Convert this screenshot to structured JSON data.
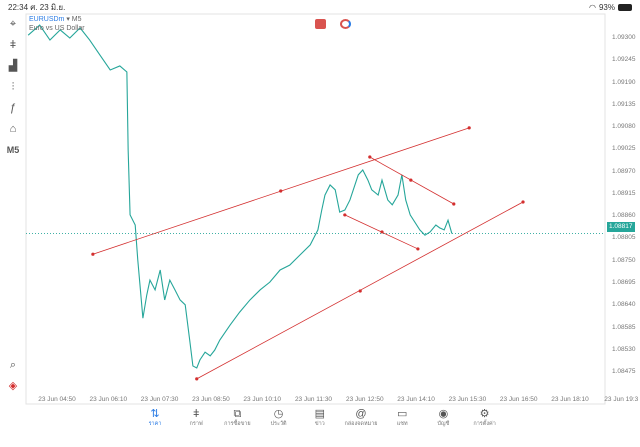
{
  "status_bar": {
    "time": "22:34",
    "date": "ศ. 23 มิ.ย.",
    "wifi_icon": "wifi-icon",
    "battery": "93%"
  },
  "symbol": {
    "name": "EURUSDm",
    "timeframe": "M5",
    "description": "Euro vs US Dollar"
  },
  "toolbar": {
    "items": [
      {
        "icon": "crosshair-icon",
        "glyph": "⌖"
      },
      {
        "icon": "candlestick-icon",
        "glyph": "ǂ"
      },
      {
        "icon": "indicators-icon",
        "glyph": "▟"
      },
      {
        "icon": "settings-sliders-icon",
        "glyph": "⫶"
      },
      {
        "icon": "function-icon",
        "glyph": "ƒ"
      },
      {
        "icon": "shapes-icon",
        "glyph": "⌂"
      },
      {
        "icon": "timeframe",
        "glyph": "M5"
      }
    ],
    "bottom": [
      {
        "icon": "search-chart-icon",
        "glyph": "⌕"
      },
      {
        "icon": "broker-logo-icon",
        "glyph": "◈"
      }
    ]
  },
  "colors": {
    "line": "#26a69a",
    "drawings": "#d32f2f",
    "current_price_bg": "#26a69a",
    "accent": "#2a7be4"
  },
  "chart_data": {
    "type": "line",
    "price_ticks": [
      "1.09300",
      "1.09245",
      "1.09190",
      "1.09135",
      "1.09080",
      "1.09025",
      "1.08970",
      "1.08915",
      "1.08860",
      "1.08805",
      "1.08750",
      "1.08695",
      "1.08640",
      "1.08585",
      "1.08530",
      "1.08475"
    ],
    "time_ticks": [
      "23 Jun 04:50",
      "23 Jun 06:10",
      "23 Jun 07:30",
      "23 Jun 08:50",
      "23 Jun 10:10",
      "23 Jun 11:30",
      "23 Jun 12:50",
      "23 Jun 14:10",
      "23 Jun 15:30",
      "23 Jun 16:50",
      "23 Jun 18:10",
      "23 Jun 19:3"
    ],
    "current_price": "1.08817",
    "series": [
      [
        "04:05",
        1.09307
      ],
      [
        "04:23",
        1.09332
      ],
      [
        "04:39",
        1.09295
      ],
      [
        "04:55",
        1.0932
      ],
      [
        "05:10",
        1.093
      ],
      [
        "05:26",
        1.09325
      ],
      [
        "05:41",
        1.09295
      ],
      [
        "05:57",
        1.09258
      ],
      [
        "06:13",
        1.09221
      ],
      [
        "06:28",
        1.09231
      ],
      [
        "06:39",
        1.09216
      ],
      [
        "06:41",
        1.09023
      ],
      [
        "06:44",
        1.08863
      ],
      [
        "06:52",
        1.08838
      ],
      [
        "06:56",
        1.08752
      ],
      [
        "07:04",
        1.08608
      ],
      [
        "07:10",
        1.08665
      ],
      [
        "07:15",
        1.08702
      ],
      [
        "07:23",
        1.08678
      ],
      [
        "07:31",
        1.08727
      ],
      [
        "07:38",
        1.08653
      ],
      [
        "07:46",
        1.08702
      ],
      [
        "07:54",
        1.08678
      ],
      [
        "08:02",
        1.08653
      ],
      [
        "08:10",
        1.08641
      ],
      [
        "08:17",
        1.08554
      ],
      [
        "08:22",
        1.0849
      ],
      [
        "08:28",
        1.08485
      ],
      [
        "08:33",
        1.08505
      ],
      [
        "08:41",
        1.08524
      ],
      [
        "08:49",
        1.08515
      ],
      [
        "08:56",
        1.08529
      ],
      [
        "09:04",
        1.08554
      ],
      [
        "09:20",
        1.08591
      ],
      [
        "09:35",
        1.08623
      ],
      [
        "09:51",
        1.08653
      ],
      [
        "10:07",
        1.08678
      ],
      [
        "10:22",
        1.08697
      ],
      [
        "10:38",
        1.08727
      ],
      [
        "10:53",
        1.08739
      ],
      [
        "11:09",
        1.08764
      ],
      [
        "11:25",
        1.08789
      ],
      [
        "11:37",
        1.08826
      ],
      [
        "11:43",
        1.08875
      ],
      [
        "11:48",
        1.08912
      ],
      [
        "11:56",
        1.08937
      ],
      [
        "12:04",
        1.08925
      ],
      [
        "12:11",
        1.0887
      ],
      [
        "12:19",
        1.08875
      ],
      [
        "12:27",
        1.089
      ],
      [
        "12:40",
        1.08962
      ],
      [
        "12:47",
        1.08974
      ],
      [
        "12:55",
        1.08949
      ],
      [
        "13:01",
        1.08925
      ],
      [
        "13:11",
        1.08912
      ],
      [
        "13:17",
        1.08949
      ],
      [
        "13:26",
        1.089
      ],
      [
        "13:33",
        1.08888
      ],
      [
        "13:42",
        1.08912
      ],
      [
        "13:48",
        1.08962
      ],
      [
        "13:54",
        1.089
      ],
      [
        "14:01",
        1.08863
      ],
      [
        "14:16",
        1.08826
      ],
      [
        "14:24",
        1.08813
      ],
      [
        "14:32",
        1.08821
      ],
      [
        "14:41",
        1.08838
      ],
      [
        "14:47",
        1.08831
      ],
      [
        "14:54",
        1.08826
      ],
      [
        "15:00",
        1.0885
      ],
      [
        "15:06",
        1.08817
      ]
    ],
    "trendlines": [
      [
        [
          "05:46",
          1.08766
        ],
        [
          "10:39",
          1.08922
        ],
        [
          "15:33",
          1.09078
        ]
      ],
      [
        [
          "08:28",
          1.08458
        ],
        [
          "12:43",
          1.08675
        ],
        [
          "16:57",
          1.08895
        ]
      ],
      [
        [
          "12:58",
          1.09006
        ],
        [
          "14:02",
          1.08949
        ],
        [
          "15:09",
          1.0889
        ]
      ],
      [
        [
          "12:19",
          1.08863
        ],
        [
          "13:17",
          1.08821
        ],
        [
          "14:13",
          1.08779
        ]
      ]
    ]
  },
  "bottom_nav": [
    {
      "label": "ราคา",
      "icon": "quotes-arrows-icon",
      "glyph": "⇅",
      "active": true
    },
    {
      "label": "กราฟ",
      "icon": "chart-candles-icon",
      "glyph": "ǂ"
    },
    {
      "label": "การซื้อขาย",
      "icon": "trade-chart-icon",
      "glyph": "⧉"
    },
    {
      "label": "ประวัติ",
      "icon": "history-clock-icon",
      "glyph": "◷"
    },
    {
      "label": "ข่าว",
      "icon": "news-icon",
      "glyph": "▤"
    },
    {
      "label": "กล่องจดหมาย",
      "icon": "mailbox-at-icon",
      "glyph": "@"
    },
    {
      "label": "แชท",
      "icon": "chat-icon",
      "glyph": "▭"
    },
    {
      "label": "บัญชี",
      "icon": "account-icon",
      "glyph": "◉"
    },
    {
      "label": "การตั้งค่า",
      "icon": "settings-gear-icon",
      "glyph": "⚙"
    }
  ]
}
